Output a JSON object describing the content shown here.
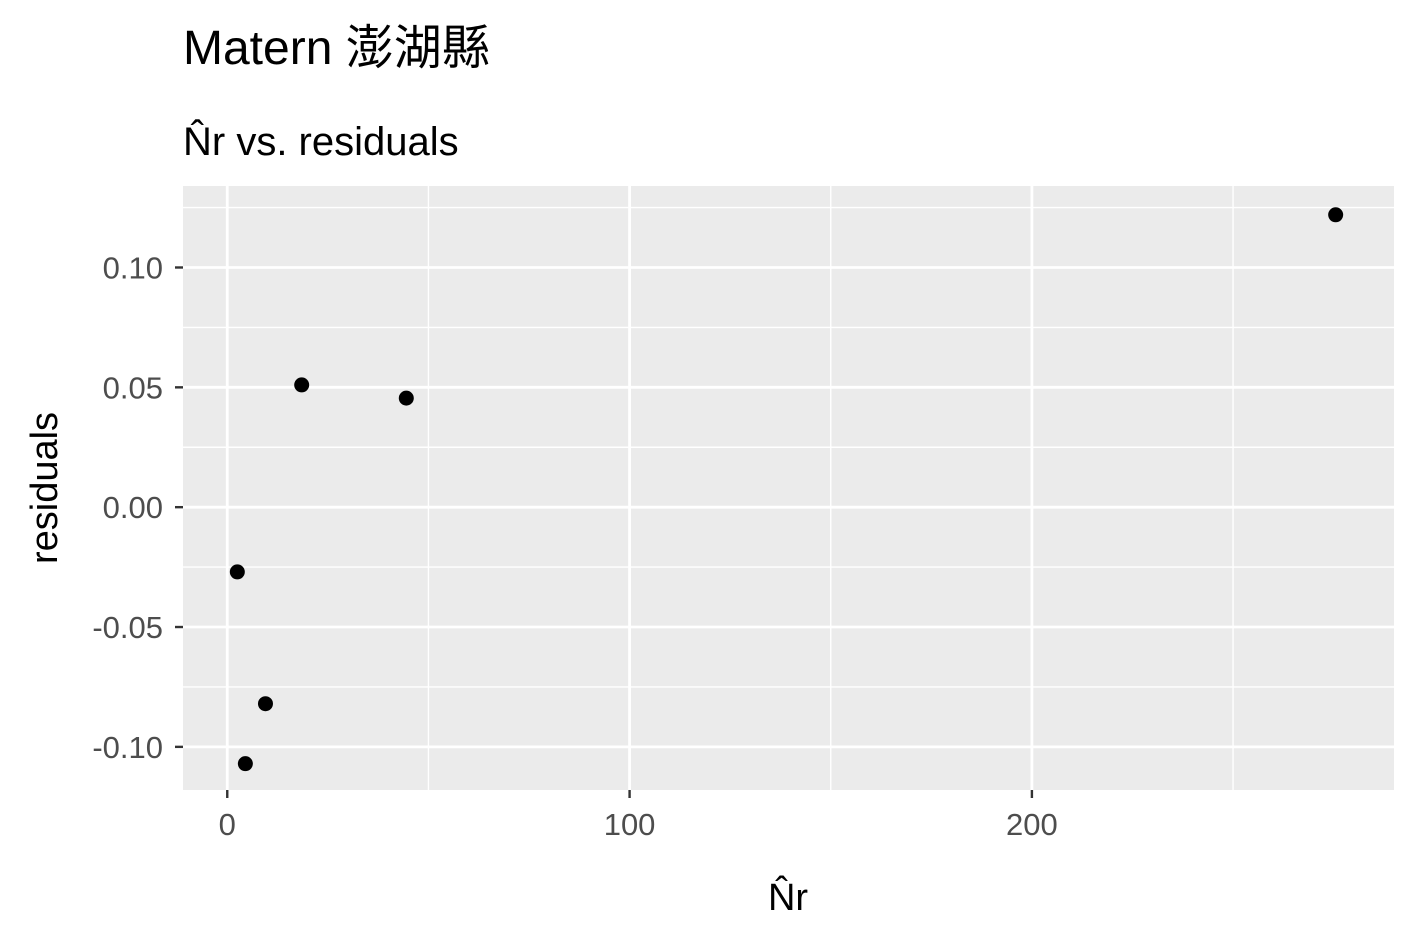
{
  "chart_data": {
    "type": "scatter",
    "title": "Matern 澎湖縣",
    "subtitle": "N̂r vs. residuals",
    "xlabel": "N̂r",
    "ylabel": "residuals",
    "xlim": [
      -11,
      290
    ],
    "ylim": [
      -0.118,
      0.134
    ],
    "x_ticks": [
      0,
      100,
      200
    ],
    "x_tick_labels": [
      "0",
      "100",
      "200"
    ],
    "x_minor_ticks": [
      50,
      150,
      250
    ],
    "y_ticks": [
      -0.1,
      -0.05,
      0.0,
      0.05,
      0.1
    ],
    "y_tick_labels": [
      "-0.10",
      "-0.05",
      "0.00",
      "0.05",
      "0.10"
    ],
    "y_minor_ticks": [
      -0.075,
      -0.025,
      0.025,
      0.075,
      0.125
    ],
    "grid": true,
    "legend": "none",
    "series": [
      {
        "x": [
          2.5,
          4.5,
          9.5,
          18.5,
          44.5,
          275.5
        ],
        "y": [
          -0.027,
          -0.107,
          -0.082,
          0.051,
          0.0455,
          0.122
        ]
      }
    ],
    "colors": {
      "panel_background": "#ebebeb",
      "grid_line": "#ffffff",
      "point": "#000000",
      "tick_label": "#4d4d4d",
      "tick_mark": "#333333"
    }
  }
}
